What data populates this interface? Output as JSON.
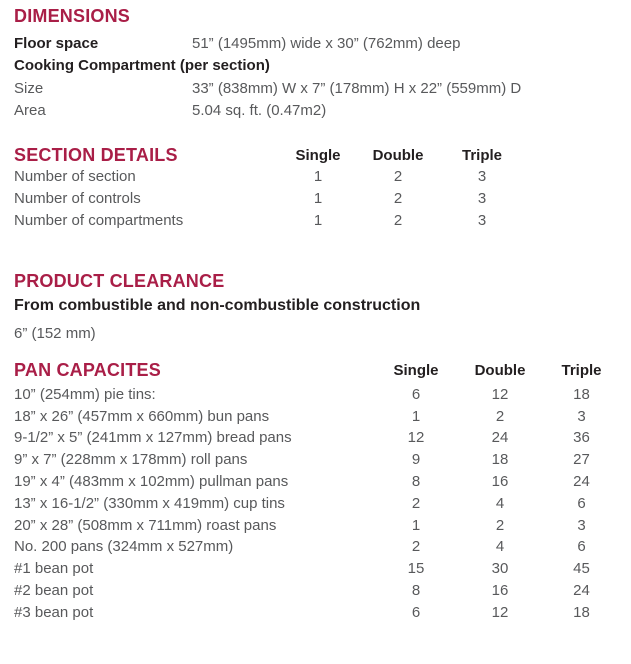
{
  "colors": {
    "heading_accent": "#A91E47",
    "label_dark": "#231F20",
    "body_gray": "#58595B",
    "background": "#FFFFFF"
  },
  "dimensions": {
    "title": "DIMENSIONS",
    "floor_space_label": "Floor space",
    "floor_space_value": "51” (1495mm) wide x 30” (762mm) deep",
    "subheading": "Cooking Compartment (per section)",
    "size_label": "Size",
    "size_value": "33” (838mm) W x 7” (178mm) H x 22” (559mm) D",
    "area_label": "Area",
    "area_value": "5.04 sq. ft. (0.47m2)"
  },
  "section_details": {
    "title": "SECTION DETAILS",
    "columns": [
      "Single",
      "Double",
      "Triple"
    ],
    "rows": [
      {
        "label": "Number of section",
        "single": "1",
        "double": "2",
        "triple": "3"
      },
      {
        "label": "Number of controls",
        "single": "1",
        "double": "2",
        "triple": "3"
      },
      {
        "label": "Number of compartments",
        "single": "1",
        "double": "2",
        "triple": "3"
      }
    ]
  },
  "product_clearance": {
    "title": "PRODUCT CLEARANCE",
    "subtitle": "From combustible and non-combustible construction",
    "value": "6” (152 mm)"
  },
  "pan_capacities": {
    "title": "PAN CAPACITES",
    "columns": [
      "Single",
      "Double",
      "Triple"
    ],
    "rows": [
      {
        "label": "10” (254mm) pie tins:",
        "single": "6",
        "double": "12",
        "triple": "18"
      },
      {
        "label": "18” x 26” (457mm x 660mm) bun pans",
        "single": "1",
        "double": "2",
        "triple": "3"
      },
      {
        "label": "9-1/2” x 5” (241mm x 127mm) bread pans",
        "single": "12",
        "double": "24",
        "triple": "36"
      },
      {
        "label": "9” x 7” (228mm x 178mm) roll pans",
        "single": "9",
        "double": "18",
        "triple": "27"
      },
      {
        "label": "19” x 4” (483mm x 102mm) pullman pans",
        "single": "8",
        "double": "16",
        "triple": "24"
      },
      {
        "label": "13” x 16-1/2” (330mm x 419mm) cup tins",
        "single": "2",
        "double": "4",
        "triple": "6"
      },
      {
        "label": "20” x 28” (508mm x 711mm) roast pans",
        "single": "1",
        "double": "2",
        "triple": "3"
      },
      {
        "label": "No. 200 pans (324mm x 527mm)",
        "single": "2",
        "double": "4",
        "triple": "6"
      },
      {
        "label": "#1 bean pot",
        "single": "15",
        "double": "30",
        "triple": "45"
      },
      {
        "label": "#2 bean pot",
        "single": "8",
        "double": "16",
        "triple": "24"
      },
      {
        "label": "#3 bean pot",
        "single": "6",
        "double": "12",
        "triple": "18"
      }
    ]
  }
}
